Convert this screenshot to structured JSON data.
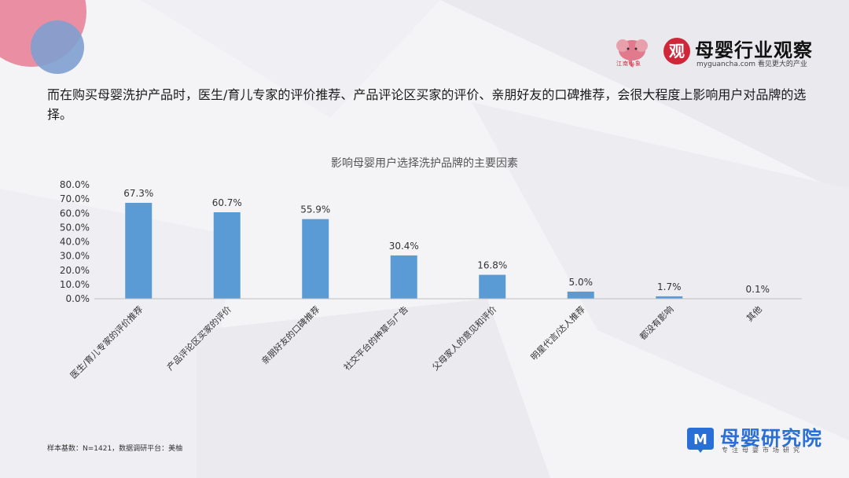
{
  "headline": "而在购买母婴洗护产品时，医生/育儿专家的评价推荐、产品评论区买家的评价、亲朋好友的口碑推荐，会很大程度上影响用户对品牌的选择。",
  "brand": {
    "mascot_text": "江南小象",
    "seal": "观",
    "title": "母婴行业观察",
    "url": "myguancha.com 看见更大的产业"
  },
  "chart_data": {
    "type": "bar",
    "title": "影响母婴用户选择洗护品牌的主要因素",
    "categories": [
      "医生/育儿专家的评价推荐",
      "产品评论区买家的评价",
      "亲朋好友的口碑推荐",
      "社交平台的种草与广告",
      "父母家人的意见和评价",
      "明星代言/达人推荐",
      "都没有影响",
      "其他"
    ],
    "values": [
      67.3,
      60.7,
      55.9,
      30.4,
      16.8,
      5.0,
      1.7,
      0.1
    ],
    "value_labels": [
      "67.3%",
      "60.7%",
      "55.9%",
      "30.4%",
      "16.8%",
      "5.0%",
      "1.7%",
      "0.1%"
    ],
    "yticks": [
      "0.0%",
      "10.0%",
      "20.0%",
      "30.0%",
      "40.0%",
      "50.0%",
      "60.0%",
      "70.0%",
      "80.0%"
    ],
    "ylim": [
      0,
      80
    ],
    "xlabel": "",
    "ylabel": "",
    "grid": false,
    "bar_color": "#5b9bd5"
  },
  "footnote": "样本基数：N=1421，数据调研平台：美柚",
  "institute": {
    "name": "母婴研究院",
    "subtitle": "专注母婴市场研究",
    "logo_letter": "M"
  },
  "colors": {
    "accent_red": "#d0263a",
    "accent_blue": "#2a6fd6",
    "circle_pink": "#e9849a",
    "circle_blue": "#7f9fcf"
  }
}
